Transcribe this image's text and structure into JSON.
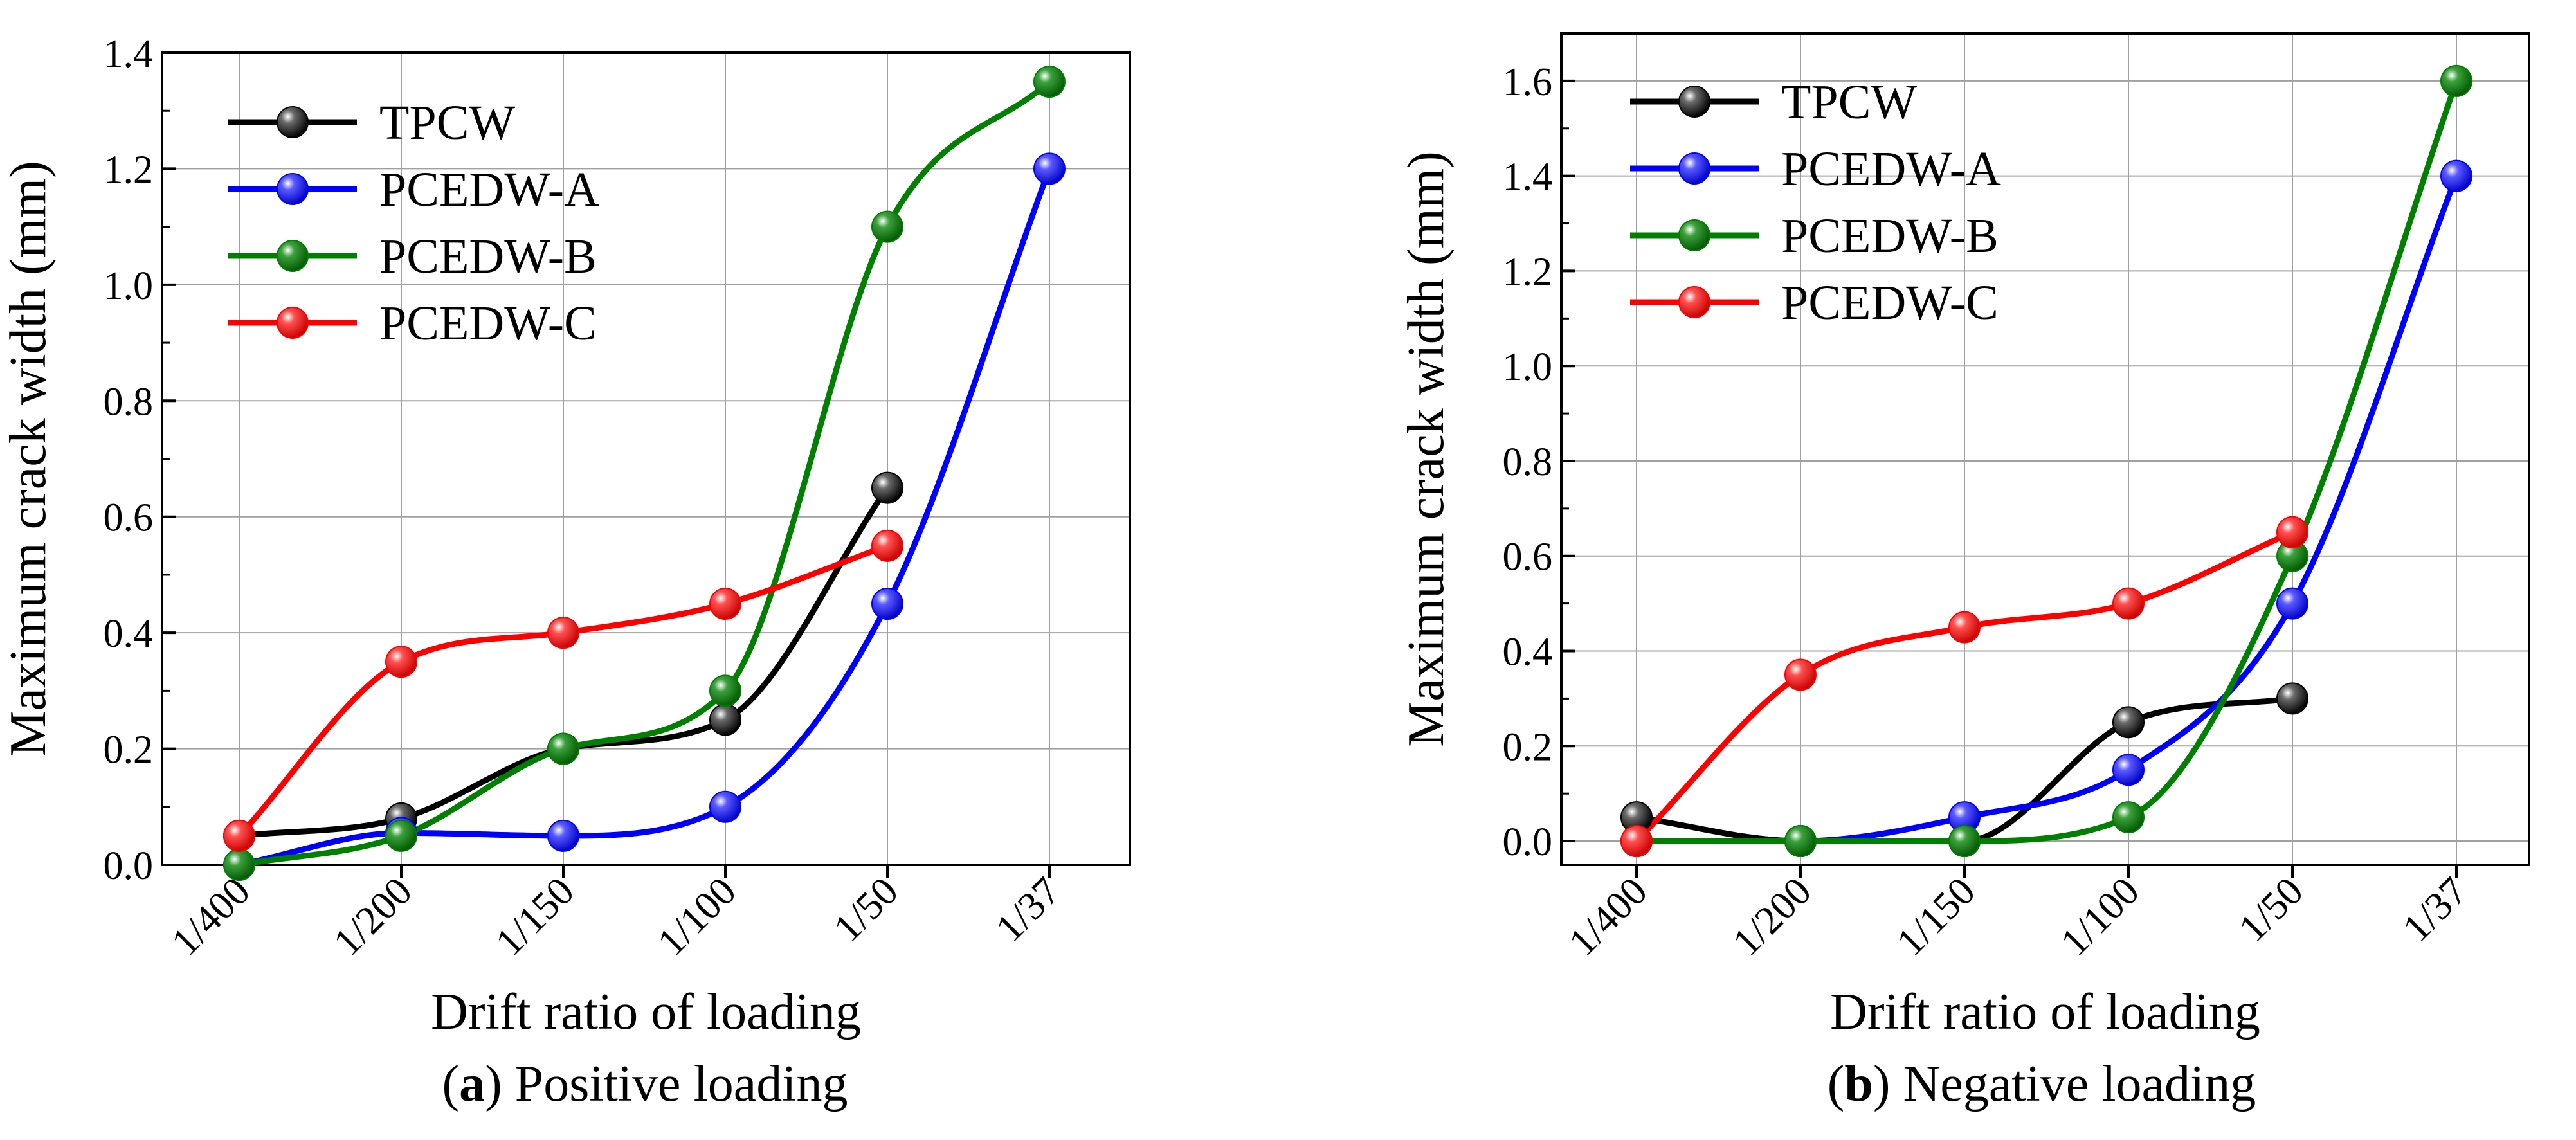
{
  "chart_data": [
    {
      "type": "line",
      "categories": [
        "1/400",
        "1/200",
        "1/150",
        "1/100",
        "1/50",
        "1/37"
      ],
      "xlabel": "Drift ratio of loading",
      "ylabel": "Maximum crack width (mm)",
      "ylim": [
        0,
        1.4
      ],
      "yticks": [
        0,
        0.2,
        0.4,
        0.6,
        0.8,
        1.0,
        1.2,
        1.4
      ],
      "ytick_labels": [
        "0.0",
        "0.2",
        "0.4",
        "0.6",
        "0.8",
        "1.0",
        "1.2",
        "1.4"
      ],
      "grid": true,
      "legend_position": "top-left",
      "caption_letter": "a",
      "caption_open": "(",
      "caption_close": ") Positive loading",
      "series": [
        {
          "name": "TPCW",
          "color": "#000000",
          "values": [
            0.05,
            0.08,
            0.2,
            0.25,
            0.65,
            null
          ]
        },
        {
          "name": "PCEDW-A",
          "color": "#0000ff",
          "values": [
            0.0,
            0.055,
            0.05,
            0.1,
            0.45,
            1.2
          ]
        },
        {
          "name": "PCEDW-B",
          "color": "#008000",
          "values": [
            0.0,
            0.05,
            0.2,
            0.3,
            1.1,
            1.35
          ]
        },
        {
          "name": "PCEDW-C",
          "color": "#ff0000",
          "values": [
            0.05,
            0.35,
            0.4,
            0.45,
            0.55,
            null
          ]
        }
      ]
    },
    {
      "type": "line",
      "categories": [
        "1/400",
        "1/200",
        "1/150",
        "1/100",
        "1/50",
        "1/37"
      ],
      "xlabel": "Drift ratio of loading",
      "ylabel": "Maximum crack width (mm)",
      "ylim": [
        -0.05,
        1.7
      ],
      "yticks": [
        0,
        0.2,
        0.4,
        0.6,
        0.8,
        1.0,
        1.2,
        1.4,
        1.6
      ],
      "ytick_labels": [
        "0.0",
        "0.2",
        "0.4",
        "0.6",
        "0.8",
        "1.0",
        "1.2",
        "1.4",
        "1.6"
      ],
      "grid": true,
      "legend_position": "top-left",
      "caption_letter": "b",
      "caption_open": "(",
      "caption_close": ") Negative loading",
      "series": [
        {
          "name": "TPCW",
          "color": "#000000",
          "values": [
            0.05,
            0.0,
            0.0,
            0.25,
            0.3,
            null
          ]
        },
        {
          "name": "PCEDW-A",
          "color": "#0000ff",
          "values": [
            0.0,
            0.0,
            0.05,
            0.15,
            0.5,
            1.4
          ]
        },
        {
          "name": "PCEDW-B",
          "color": "#008000",
          "values": [
            0.0,
            0.0,
            0.0,
            0.05,
            0.6,
            1.6
          ]
        },
        {
          "name": "PCEDW-C",
          "color": "#ff0000",
          "values": [
            0.0,
            0.35,
            0.45,
            0.5,
            0.65,
            null
          ]
        }
      ]
    }
  ]
}
